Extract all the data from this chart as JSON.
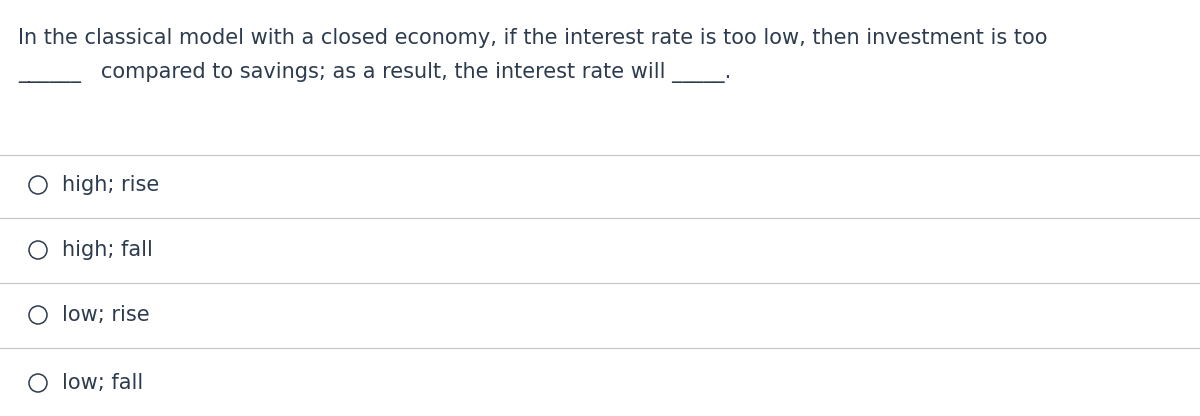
{
  "background_color": "#ffffff",
  "text_color": "#2d3b4e",
  "question_line1": "In the classical model with a closed economy, if the interest rate is too low, then investment is too",
  "question_line2": "______   compared to savings; as a result, the interest rate will _____.",
  "options": [
    "high; rise",
    "high; fall",
    "low; rise",
    "low; fall"
  ],
  "separator_color": "#c8c8c8",
  "circle_color": "#2d3b4e",
  "font_size_question": 15.0,
  "font_size_options": 15.0,
  "fig_width": 12.0,
  "fig_height": 4.16,
  "dpi": 100
}
